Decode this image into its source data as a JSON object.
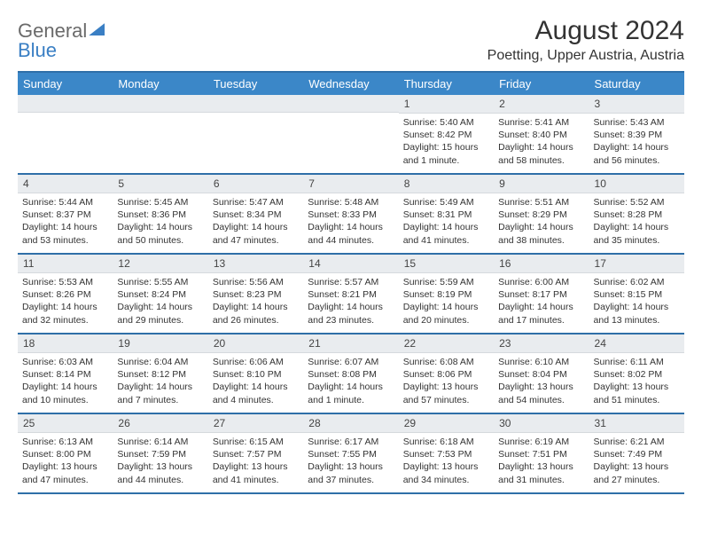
{
  "logo": {
    "text1": "General",
    "text2": "Blue"
  },
  "title": "August 2024",
  "location": "Poetting, Upper Austria, Austria",
  "colors": {
    "header_bg": "#3b87c8",
    "border": "#2f6fa8",
    "daynum_bg": "#e9ecef",
    "text": "#333333",
    "logo_gray": "#6a6a6a",
    "logo_blue": "#3a7fc4"
  },
  "daynames": [
    "Sunday",
    "Monday",
    "Tuesday",
    "Wednesday",
    "Thursday",
    "Friday",
    "Saturday"
  ],
  "weeks": [
    [
      null,
      null,
      null,
      null,
      {
        "n": "1",
        "sr": "Sunrise: 5:40 AM",
        "ss": "Sunset: 8:42 PM",
        "dl": "Daylight: 15 hours and 1 minute."
      },
      {
        "n": "2",
        "sr": "Sunrise: 5:41 AM",
        "ss": "Sunset: 8:40 PM",
        "dl": "Daylight: 14 hours and 58 minutes."
      },
      {
        "n": "3",
        "sr": "Sunrise: 5:43 AM",
        "ss": "Sunset: 8:39 PM",
        "dl": "Daylight: 14 hours and 56 minutes."
      }
    ],
    [
      {
        "n": "4",
        "sr": "Sunrise: 5:44 AM",
        "ss": "Sunset: 8:37 PM",
        "dl": "Daylight: 14 hours and 53 minutes."
      },
      {
        "n": "5",
        "sr": "Sunrise: 5:45 AM",
        "ss": "Sunset: 8:36 PM",
        "dl": "Daylight: 14 hours and 50 minutes."
      },
      {
        "n": "6",
        "sr": "Sunrise: 5:47 AM",
        "ss": "Sunset: 8:34 PM",
        "dl": "Daylight: 14 hours and 47 minutes."
      },
      {
        "n": "7",
        "sr": "Sunrise: 5:48 AM",
        "ss": "Sunset: 8:33 PM",
        "dl": "Daylight: 14 hours and 44 minutes."
      },
      {
        "n": "8",
        "sr": "Sunrise: 5:49 AM",
        "ss": "Sunset: 8:31 PM",
        "dl": "Daylight: 14 hours and 41 minutes."
      },
      {
        "n": "9",
        "sr": "Sunrise: 5:51 AM",
        "ss": "Sunset: 8:29 PM",
        "dl": "Daylight: 14 hours and 38 minutes."
      },
      {
        "n": "10",
        "sr": "Sunrise: 5:52 AM",
        "ss": "Sunset: 8:28 PM",
        "dl": "Daylight: 14 hours and 35 minutes."
      }
    ],
    [
      {
        "n": "11",
        "sr": "Sunrise: 5:53 AM",
        "ss": "Sunset: 8:26 PM",
        "dl": "Daylight: 14 hours and 32 minutes."
      },
      {
        "n": "12",
        "sr": "Sunrise: 5:55 AM",
        "ss": "Sunset: 8:24 PM",
        "dl": "Daylight: 14 hours and 29 minutes."
      },
      {
        "n": "13",
        "sr": "Sunrise: 5:56 AM",
        "ss": "Sunset: 8:23 PM",
        "dl": "Daylight: 14 hours and 26 minutes."
      },
      {
        "n": "14",
        "sr": "Sunrise: 5:57 AM",
        "ss": "Sunset: 8:21 PM",
        "dl": "Daylight: 14 hours and 23 minutes."
      },
      {
        "n": "15",
        "sr": "Sunrise: 5:59 AM",
        "ss": "Sunset: 8:19 PM",
        "dl": "Daylight: 14 hours and 20 minutes."
      },
      {
        "n": "16",
        "sr": "Sunrise: 6:00 AM",
        "ss": "Sunset: 8:17 PM",
        "dl": "Daylight: 14 hours and 17 minutes."
      },
      {
        "n": "17",
        "sr": "Sunrise: 6:02 AM",
        "ss": "Sunset: 8:15 PM",
        "dl": "Daylight: 14 hours and 13 minutes."
      }
    ],
    [
      {
        "n": "18",
        "sr": "Sunrise: 6:03 AM",
        "ss": "Sunset: 8:14 PM",
        "dl": "Daylight: 14 hours and 10 minutes."
      },
      {
        "n": "19",
        "sr": "Sunrise: 6:04 AM",
        "ss": "Sunset: 8:12 PM",
        "dl": "Daylight: 14 hours and 7 minutes."
      },
      {
        "n": "20",
        "sr": "Sunrise: 6:06 AM",
        "ss": "Sunset: 8:10 PM",
        "dl": "Daylight: 14 hours and 4 minutes."
      },
      {
        "n": "21",
        "sr": "Sunrise: 6:07 AM",
        "ss": "Sunset: 8:08 PM",
        "dl": "Daylight: 14 hours and 1 minute."
      },
      {
        "n": "22",
        "sr": "Sunrise: 6:08 AM",
        "ss": "Sunset: 8:06 PM",
        "dl": "Daylight: 13 hours and 57 minutes."
      },
      {
        "n": "23",
        "sr": "Sunrise: 6:10 AM",
        "ss": "Sunset: 8:04 PM",
        "dl": "Daylight: 13 hours and 54 minutes."
      },
      {
        "n": "24",
        "sr": "Sunrise: 6:11 AM",
        "ss": "Sunset: 8:02 PM",
        "dl": "Daylight: 13 hours and 51 minutes."
      }
    ],
    [
      {
        "n": "25",
        "sr": "Sunrise: 6:13 AM",
        "ss": "Sunset: 8:00 PM",
        "dl": "Daylight: 13 hours and 47 minutes."
      },
      {
        "n": "26",
        "sr": "Sunrise: 6:14 AM",
        "ss": "Sunset: 7:59 PM",
        "dl": "Daylight: 13 hours and 44 minutes."
      },
      {
        "n": "27",
        "sr": "Sunrise: 6:15 AM",
        "ss": "Sunset: 7:57 PM",
        "dl": "Daylight: 13 hours and 41 minutes."
      },
      {
        "n": "28",
        "sr": "Sunrise: 6:17 AM",
        "ss": "Sunset: 7:55 PM",
        "dl": "Daylight: 13 hours and 37 minutes."
      },
      {
        "n": "29",
        "sr": "Sunrise: 6:18 AM",
        "ss": "Sunset: 7:53 PM",
        "dl": "Daylight: 13 hours and 34 minutes."
      },
      {
        "n": "30",
        "sr": "Sunrise: 6:19 AM",
        "ss": "Sunset: 7:51 PM",
        "dl": "Daylight: 13 hours and 31 minutes."
      },
      {
        "n": "31",
        "sr": "Sunrise: 6:21 AM",
        "ss": "Sunset: 7:49 PM",
        "dl": "Daylight: 13 hours and 27 minutes."
      }
    ]
  ]
}
